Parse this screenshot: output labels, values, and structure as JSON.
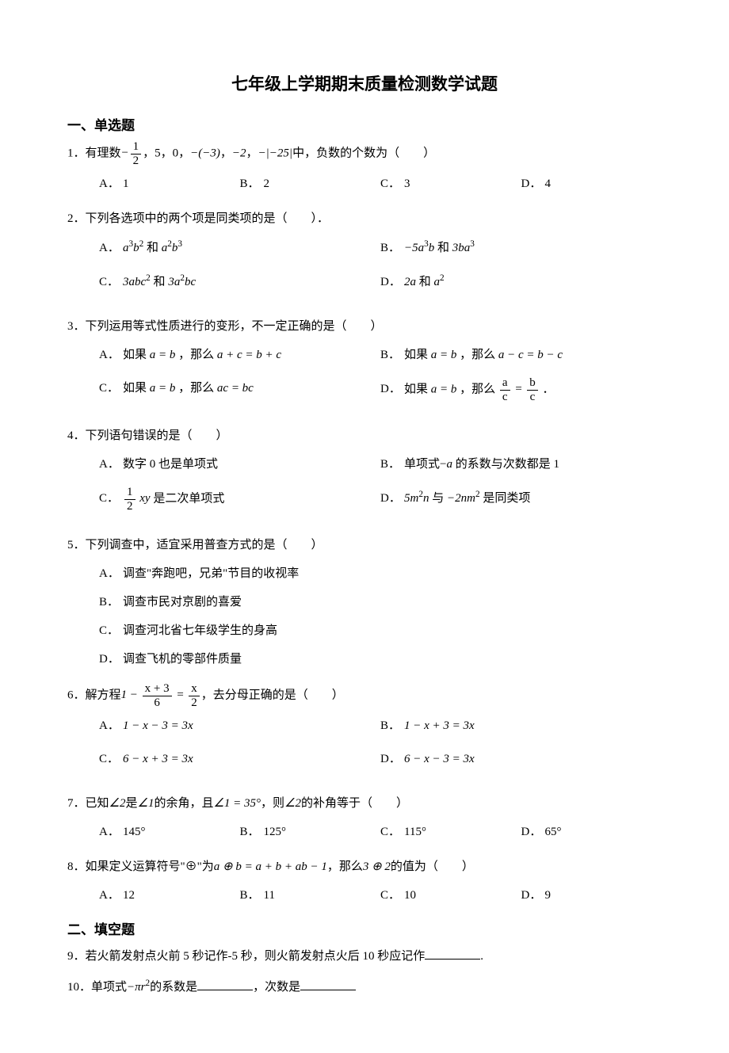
{
  "title": "七年级上学期期末质量检测数学试题",
  "section1": "一、单选题",
  "section2": "二、填空题",
  "q1": {
    "num": "1．",
    "pre": "有理数",
    "items": "，5，0，",
    "mid": "，",
    "mid2": "，",
    "post": "中，负数的个数为（　　）",
    "A": "1",
    "B": "2",
    "C": "3",
    "D": "4"
  },
  "q2": {
    "num": "2．",
    "stem": "下列各选项中的两个项是同类项的是（　　）．"
  },
  "q3": {
    "num": "3．",
    "stem": "下列运用等式性质进行的变形，不一定正确的是（　　）"
  },
  "q4": {
    "num": "4．",
    "stem": "下列语句错误的是（　　）",
    "A": "数字 0 也是单项式",
    "B_pre": "单项式−",
    "B_post": " 的系数与次数都是 1",
    "C_post": " 是二次单项式",
    "D_mid": " 与 ",
    "D_post": " 是同类项"
  },
  "q5": {
    "num": "5．",
    "stem": "下列调查中，适宜采用普查方式的是（　　）",
    "A": "调查\"奔跑吧，兄弟\"节目的收视率",
    "B": "调查市民对京剧的喜爱",
    "C": "调查河北省七年级学生的身高",
    "D": "调查飞机的零部件质量"
  },
  "q6": {
    "num": "6．",
    "pre": "解方程",
    "post": "，去分母正确的是（　　）"
  },
  "q7": {
    "num": "7．",
    "pre": "已知",
    "mid1": "是",
    "mid2": "的余角，且",
    "mid3": "，则",
    "post": "的补角等于（　　）",
    "A": "145°",
    "B": "125°",
    "C": "115°",
    "D": "65°"
  },
  "q8": {
    "num": "8．",
    "pre": "如果定义运算符号\"⊕\"为",
    "mid": "，那么",
    "post": "的值为（　　）",
    "A": "12",
    "B": "11",
    "C": "10",
    "D": "9"
  },
  "q9": {
    "num": "9．",
    "stem": "若火箭发射点火前 5 秒记作-5 秒，则火箭发射点火后 10 秒应记作",
    "end": "."
  },
  "q10": {
    "num": "10．",
    "pre": "单项式",
    "mid": "的系数是",
    "mid2": "，次数是"
  },
  "labels": {
    "A": "A．",
    "B": "B．",
    "C": "C．",
    "D": "D．"
  }
}
